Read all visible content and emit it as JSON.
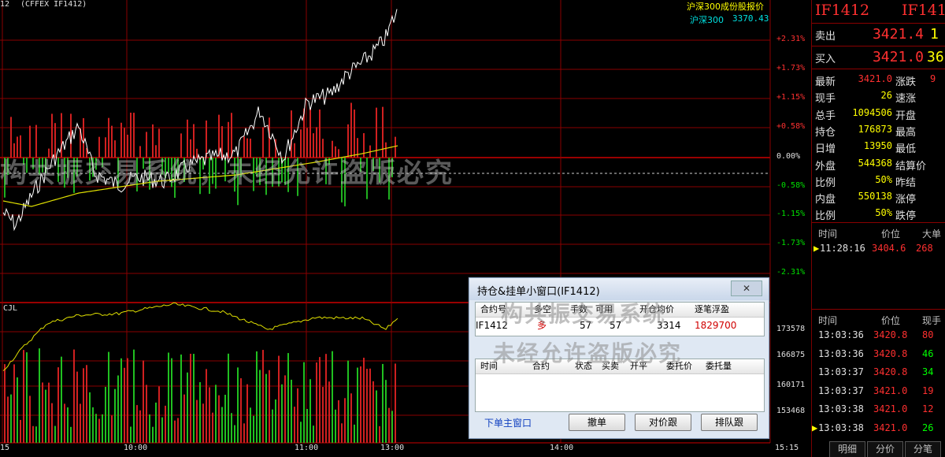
{
  "header": {
    "code": "12",
    "contract": "(CFFEX IF1412)",
    "index_label": "沪深300成份股报价",
    "index_name": "沪深300",
    "index_value": "3370.43"
  },
  "price_axis": [
    "+2.31%",
    "+1.73%",
    "+1.15%",
    "+0.58%",
    "0.00%",
    "-0.58%",
    "-1.15%",
    "-1.73%",
    "-2.31%"
  ],
  "volume_axis": [
    "173578",
    "166875",
    "160171",
    "153468"
  ],
  "cjl_label": "CJL",
  "time_axis": [
    "15",
    "10:00",
    "11:00",
    "13:00",
    "14:00",
    "15:15"
  ],
  "watermark": "构共振交易系统，未经允许盗版必究",
  "watermark2": [
    "构共振交易系统",
    "未经允许盗版必究"
  ],
  "panel": {
    "title_left": "IF1412",
    "title_right": "IF141",
    "ask_label": "卖出",
    "ask_price": "3421.4",
    "ask_qty": "1",
    "bid_label": "买入",
    "bid_price": "3421.0",
    "bid_qty": "36",
    "stats": [
      {
        "l": "最新",
        "v": "3421.0",
        "r": "涨跌",
        "rv": "9",
        "c": "#ff3030"
      },
      {
        "l": "现手",
        "v": "26",
        "r": "速涨",
        "rv": "",
        "c": "#ffff00"
      },
      {
        "l": "总手",
        "v": "1094506",
        "r": "开盘",
        "rv": "",
        "c": "#ffff00"
      },
      {
        "l": "持仓",
        "v": "176873",
        "r": "最高",
        "rv": "",
        "c": "#ffff00"
      },
      {
        "l": "日增",
        "v": "13950",
        "r": "最低",
        "rv": "",
        "c": "#ffff00"
      },
      {
        "l": "外盘",
        "v": "544368",
        "r": "结算价",
        "rv": "",
        "c": "#ffff00"
      },
      {
        "l": "比例",
        "v": "50%",
        "r": "昨结",
        "rv": "",
        "c": "#ffff00"
      },
      {
        "l": "内盘",
        "v": "550138",
        "r": "涨停",
        "rv": "",
        "c": "#ffff00"
      },
      {
        "l": "比例",
        "v": "50%",
        "r": "跌停",
        "rv": "",
        "c": "#ffff00"
      }
    ],
    "big_header": {
      "time": "时间",
      "price": "价位",
      "qty": "大单"
    },
    "big_rows": [
      {
        "time": "11:28:16",
        "price": "3404.6",
        "qty": "268"
      }
    ],
    "tick_header": {
      "time": "时间",
      "price": "价位",
      "qty": "现手"
    },
    "ticks": [
      {
        "time": "13:03:36",
        "price": "3420.8",
        "qty": "80",
        "c": "#ff3030"
      },
      {
        "time": "13:03:36",
        "price": "3420.8",
        "qty": "46",
        "c": "#00ff00"
      },
      {
        "time": "13:03:37",
        "price": "3420.8",
        "qty": "34",
        "c": "#00ff00"
      },
      {
        "time": "13:03:37",
        "price": "3421.0",
        "qty": "19",
        "c": "#ff3030"
      },
      {
        "time": "13:03:38",
        "price": "3421.0",
        "qty": "12",
        "c": "#ff3030"
      },
      {
        "time": "13:03:38",
        "price": "3421.0",
        "qty": "26",
        "c": "#00ff00"
      }
    ],
    "tabs": [
      "明细",
      "分价",
      "分笔"
    ]
  },
  "dialog": {
    "title": "持仓&挂单小窗口(IF1412)",
    "close": "✕",
    "pos_headers": [
      "合约号",
      "多空",
      "手数",
      "可用",
      "开仓均价",
      "逐笔浮盈"
    ],
    "pos_row": [
      "IF1412",
      "多",
      "57",
      "57",
      "3314",
      "1829700"
    ],
    "order_headers": [
      "时间",
      "合约",
      "状态",
      "买卖",
      "开平",
      "委托价",
      "委托量"
    ],
    "link": "下单主窗口",
    "buttons": [
      "撤单",
      "对价跟",
      "排队跟"
    ]
  },
  "chart_data": {
    "type": "line",
    "price_series": "white",
    "avg_series": "yellow",
    "ylim_pct": [
      -2.31,
      2.31
    ],
    "volume_ylim": [
      150000,
      176000
    ]
  }
}
